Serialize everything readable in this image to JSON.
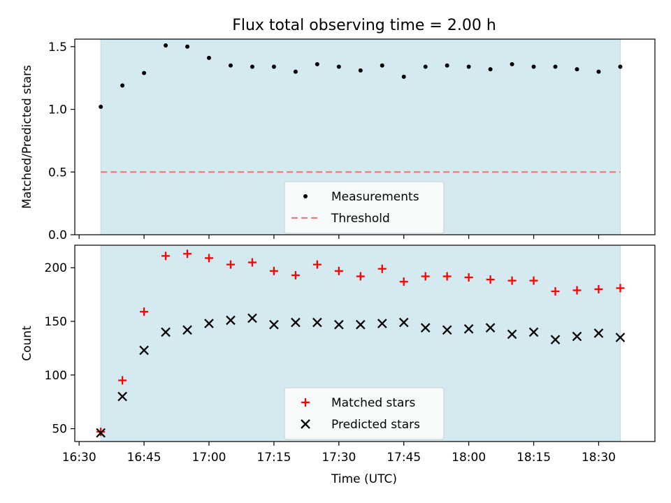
{
  "figure": {
    "title": "Flux total observing time = 2.00 h",
    "xlabel": "Time (UTC)"
  },
  "colors": {
    "span": "#d4eaf0",
    "threshold": "#f07b7b",
    "matched": "#ff0000",
    "predicted": "#000000",
    "measurement": "#000000"
  },
  "chart_data": [
    {
      "type": "scatter",
      "panel": "top",
      "ylabel": "Matched/Predicted stars",
      "ylim": [
        0,
        1.56
      ],
      "yticks": [
        0.0,
        0.5,
        1.0,
        1.5
      ],
      "ytick_labels": [
        "0.0",
        "0.5",
        "1.0",
        "1.5"
      ],
      "shaded_span": [
        "16:35",
        "18:35"
      ],
      "x": [
        "16:35",
        "16:40",
        "16:45",
        "16:50",
        "16:55",
        "17:00",
        "17:05",
        "17:10",
        "17:15",
        "17:20",
        "17:25",
        "17:30",
        "17:35",
        "17:40",
        "17:45",
        "17:50",
        "17:55",
        "18:00",
        "18:05",
        "18:10",
        "18:15",
        "18:20",
        "18:25",
        "18:30",
        "18:35"
      ],
      "series": [
        {
          "name": "Measurements",
          "marker": "dot",
          "values": [
            1.02,
            1.19,
            1.29,
            1.51,
            1.5,
            1.41,
            1.35,
            1.34,
            1.34,
            1.3,
            1.36,
            1.34,
            1.31,
            1.35,
            1.26,
            1.34,
            1.35,
            1.34,
            1.32,
            1.36,
            1.34,
            1.34,
            1.32,
            1.3,
            1.34
          ]
        }
      ],
      "hline": {
        "name": "Threshold",
        "y": 0.5,
        "style": "dashed"
      },
      "legend_position": "lower center"
    },
    {
      "type": "scatter",
      "panel": "bottom",
      "ylabel": "Count",
      "ylim": [
        38,
        221
      ],
      "yticks": [
        50,
        100,
        150,
        200
      ],
      "ytick_labels": [
        "50",
        "100",
        "150",
        "200"
      ],
      "shaded_span": [
        "16:35",
        "18:35"
      ],
      "x": [
        "16:35",
        "16:40",
        "16:45",
        "16:50",
        "16:55",
        "17:00",
        "17:05",
        "17:10",
        "17:15",
        "17:20",
        "17:25",
        "17:30",
        "17:35",
        "17:40",
        "17:45",
        "17:50",
        "17:55",
        "18:00",
        "18:05",
        "18:10",
        "18:15",
        "18:20",
        "18:25",
        "18:30",
        "18:35"
      ],
      "series": [
        {
          "name": "Matched stars",
          "marker": "plus",
          "values": [
            47,
            95,
            159,
            211,
            213,
            209,
            203,
            205,
            197,
            193,
            203,
            197,
            192,
            199,
            187,
            192,
            192,
            191,
            189,
            188,
            188,
            178,
            179,
            180,
            181
          ]
        },
        {
          "name": "Predicted stars",
          "marker": "x",
          "values": [
            46,
            80,
            123,
            140,
            142,
            148,
            151,
            153,
            147,
            149,
            149,
            147,
            147,
            148,
            149,
            144,
            142,
            143,
            144,
            138,
            140,
            133,
            136,
            139,
            135
          ]
        }
      ],
      "legend_position": "lower center"
    }
  ],
  "xaxis": {
    "xlim": [
      "16:29",
      "18:43"
    ],
    "ticks": [
      "16:30",
      "16:45",
      "17:00",
      "17:15",
      "17:30",
      "17:45",
      "18:00",
      "18:15",
      "18:30"
    ],
    "tick_labels": [
      "16:30",
      "16:45",
      "17:00",
      "17:15",
      "17:30",
      "17:45",
      "18:00",
      "18:15",
      "18:30"
    ]
  }
}
